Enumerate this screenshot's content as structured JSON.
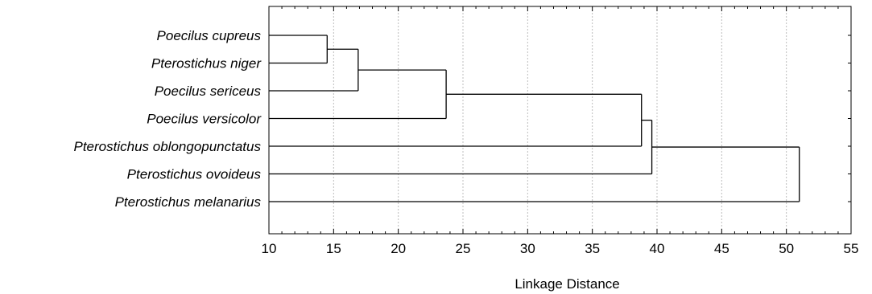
{
  "chart_data": {
    "type": "dendrogram",
    "xlabel": "Linkage Distance",
    "xlim": [
      10,
      55
    ],
    "xticks": [
      10,
      15,
      20,
      25,
      30,
      35,
      40,
      45,
      50,
      55
    ],
    "grid": "vertical dotted",
    "leaves": [
      "Poecilus cupreus",
      "Pterostichus niger",
      "Poecilus sericeus",
      "Poecilus versicolor",
      "Pterostichus oblongopunctatus",
      "Pterostichus ovoideus",
      "Pterostichus melanarius"
    ],
    "merges": [
      {
        "id": "c1",
        "children": [
          "Poecilus cupreus",
          "Pterostichus niger"
        ],
        "distance": 14.5
      },
      {
        "id": "c2",
        "children": [
          "c1",
          "Poecilus sericeus"
        ],
        "distance": 16.9
      },
      {
        "id": "c3",
        "children": [
          "c2",
          "Poecilus versicolor"
        ],
        "distance": 23.7
      },
      {
        "id": "c4",
        "children": [
          "c3",
          "Pterostichus oblongopunctatus"
        ],
        "distance": 38.8
      },
      {
        "id": "c5",
        "children": [
          "c4",
          "Pterostichus ovoideus"
        ],
        "distance": 39.6
      },
      {
        "id": "c6",
        "children": [
          "c5",
          "Pterostichus melanarius"
        ],
        "distance": 51.0
      }
    ]
  }
}
